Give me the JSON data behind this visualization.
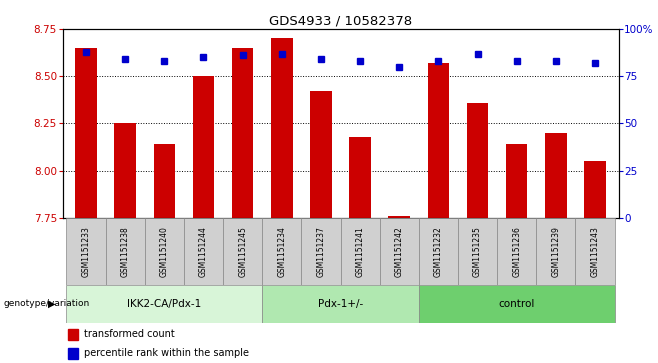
{
  "title": "GDS4933 / 10582378",
  "samples": [
    "GSM1151233",
    "GSM1151238",
    "GSM1151240",
    "GSM1151244",
    "GSM1151245",
    "GSM1151234",
    "GSM1151237",
    "GSM1151241",
    "GSM1151242",
    "GSM1151232",
    "GSM1151235",
    "GSM1151236",
    "GSM1151239",
    "GSM1151243"
  ],
  "bar_values": [
    8.65,
    8.25,
    8.14,
    8.5,
    8.65,
    8.7,
    8.42,
    8.18,
    7.76,
    8.57,
    8.36,
    8.14,
    8.2,
    8.05
  ],
  "dot_values": [
    88,
    84,
    83,
    85,
    86,
    87,
    84,
    83,
    80,
    83,
    87,
    83,
    83,
    82
  ],
  "groups": [
    {
      "label": "IKK2-CA/Pdx-1",
      "start": 0,
      "end": 5
    },
    {
      "label": "Pdx-1+/-",
      "start": 5,
      "end": 9
    },
    {
      "label": "control",
      "start": 9,
      "end": 14
    }
  ],
  "ylim_left": [
    7.75,
    8.75
  ],
  "ylim_right": [
    0,
    100
  ],
  "yticks_left": [
    7.75,
    8.0,
    8.25,
    8.5,
    8.75
  ],
  "yticks_right": [
    0,
    25,
    50,
    75,
    100
  ],
  "ytick_right_labels": [
    "0",
    "25",
    "50",
    "75",
    "100%"
  ],
  "bar_color": "#cc0000",
  "dot_color": "#0000cc",
  "bar_baseline": 7.75,
  "grid_lines": [
    8.0,
    8.25,
    8.5
  ],
  "xlabel_left": "genotype/variation",
  "legend_items": [
    "transformed count",
    "percentile rank within the sample"
  ],
  "background_color": "#ffffff",
  "plot_bg_color": "#ffffff",
  "group_bg_color": [
    "#d8f5d8",
    "#b0e8b0",
    "#6ecf6e"
  ],
  "label_bg_color": "#d0d0d0"
}
